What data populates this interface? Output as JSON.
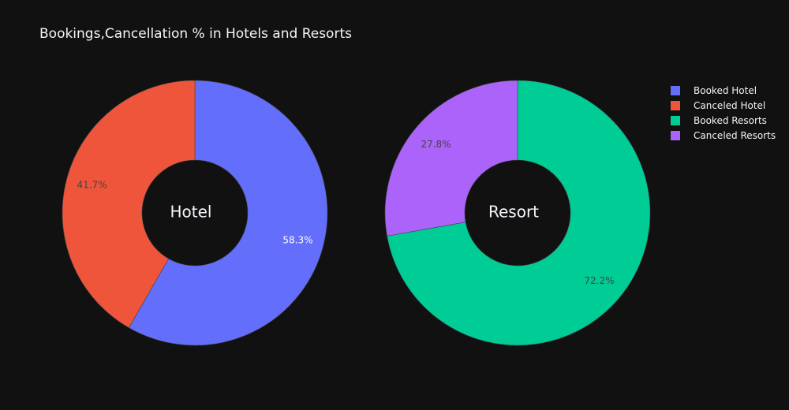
{
  "chart_data": {
    "type": "pie",
    "title": "Bookings,Cancellation % in Hotels and Resorts",
    "pies": [
      {
        "center_label": "Hotel",
        "slices": [
          {
            "label": "Booked Hotel",
            "value": 58.3,
            "text": "58.3%",
            "color": "#636efa",
            "text_color": "#ffffff"
          },
          {
            "label": "Canceled Hotel",
            "value": 41.7,
            "text": "41.7%",
            "color": "#ef553b",
            "text_color": "#444444"
          }
        ]
      },
      {
        "center_label": "Resort",
        "slices": [
          {
            "label": "Booked Resorts",
            "value": 72.2,
            "text": "72.2%",
            "color": "#00cc96",
            "text_color": "#444444"
          },
          {
            "label": "Canceled Resorts",
            "value": 27.8,
            "text": "27.8%",
            "color": "#ab63fa",
            "text_color": "#444444"
          }
        ]
      }
    ],
    "legend": [
      {
        "label": "Booked Hotel",
        "color": "#636efa"
      },
      {
        "label": "Canceled Hotel",
        "color": "#ef553b"
      },
      {
        "label": "Booked Resorts",
        "color": "#00cc96"
      },
      {
        "label": "Canceled Resorts",
        "color": "#ab63fa"
      }
    ],
    "hole": true,
    "legend_position": "top-right",
    "background": "#111111"
  }
}
